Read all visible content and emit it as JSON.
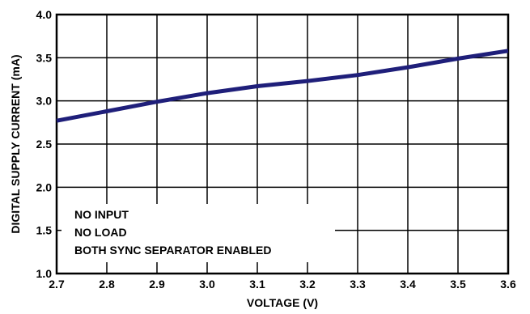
{
  "chart_data": {
    "type": "line",
    "title": "",
    "xlabel": "VOLTAGE (V)",
    "ylabel": "DIGITAL SUPPLY CURRENT (mA)",
    "xlim": [
      2.7,
      3.6
    ],
    "ylim": [
      1.0,
      4.0
    ],
    "x_ticks": [
      "2.7",
      "2.8",
      "2.9",
      "3.0",
      "3.1",
      "3.2",
      "3.3",
      "3.4",
      "3.5",
      "3.6"
    ],
    "y_ticks": [
      "1.0",
      "1.5",
      "2.0",
      "2.5",
      "3.0",
      "3.5",
      "4.0"
    ],
    "grid": true,
    "annotations": [
      "NO INPUT",
      "NO LOAD",
      "BOTH SYNC SEPARATOR ENABLED"
    ],
    "series": [
      {
        "color": "#1f1f7a",
        "x": [
          2.7,
          2.8,
          2.9,
          3.0,
          3.1,
          3.2,
          3.3,
          3.4,
          3.5,
          3.6
        ],
        "y": [
          2.77,
          2.88,
          2.99,
          3.09,
          3.17,
          3.23,
          3.3,
          3.39,
          3.49,
          3.58
        ]
      }
    ]
  }
}
